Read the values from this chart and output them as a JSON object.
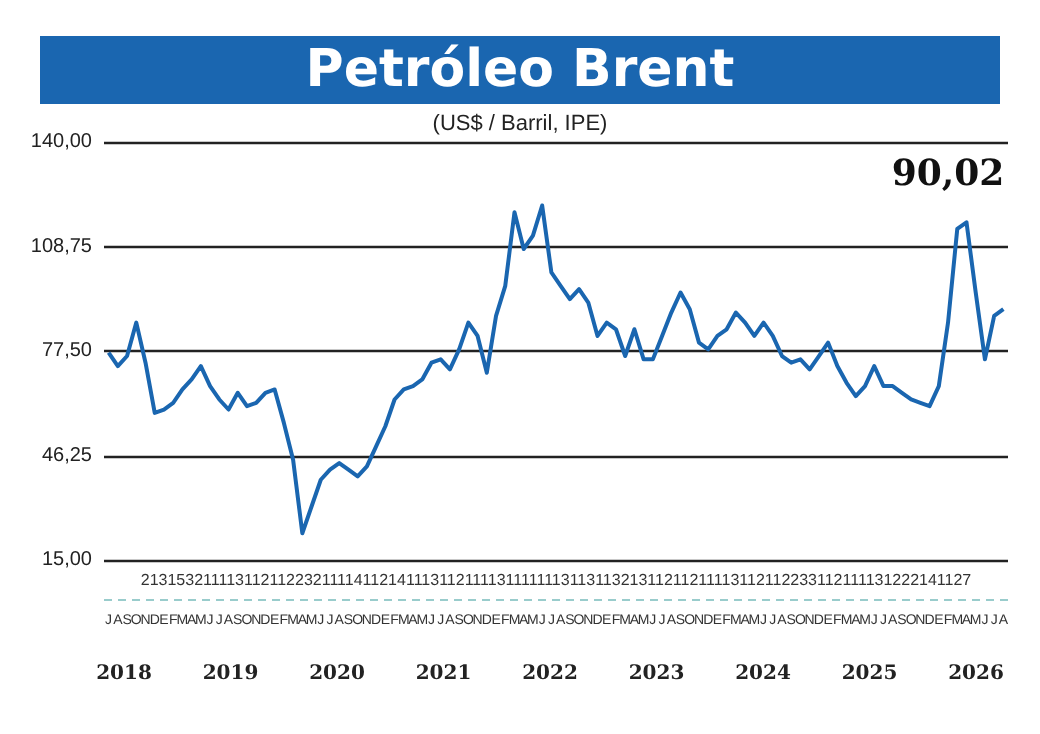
{
  "chart_data": {
    "type": "line",
    "title": "Petróleo Brent",
    "subtitle": "(US$ / Barril, IPE)",
    "categories": [
      "J",
      "A",
      "S",
      "O",
      "N",
      "D",
      "E",
      "F",
      "M",
      "A",
      "M",
      "J",
      "J",
      "A",
      "S",
      "O",
      "N",
      "D",
      "E",
      "F",
      "M",
      "A",
      "M",
      "J",
      "J",
      "A",
      "S",
      "O",
      "N",
      "D",
      "E",
      "F",
      "M",
      "A",
      "M",
      "J",
      "J",
      "A",
      "S",
      "O",
      "N",
      "D",
      "E",
      "F",
      "M",
      "A",
      "M",
      "J",
      "J",
      "A",
      "S",
      "O",
      "N",
      "D",
      "E",
      "F",
      "M",
      "A",
      "M",
      "J",
      "J",
      "A",
      "S",
      "O",
      "N",
      "D",
      "E",
      "F",
      "M",
      "A",
      "M",
      "J",
      "J",
      "A",
      "S",
      "O",
      "N",
      "D",
      "E",
      "F",
      "M",
      "A",
      "M",
      "J",
      "J",
      "A",
      "S",
      "O",
      "N",
      "D",
      "E",
      "F",
      "M",
      "A",
      "M",
      "J",
      "J",
      "A"
    ],
    "series": [
      {
        "color": "#1a66b0",
        "values": [
          77,
          73,
          76,
          86,
          74,
          59,
          60,
          62,
          66,
          69,
          73,
          67,
          63,
          60,
          65,
          61,
          62,
          65,
          66,
          56,
          45,
          23,
          31,
          39,
          42,
          44,
          42,
          40,
          43,
          49,
          55,
          63,
          66,
          67,
          69,
          74,
          75,
          72,
          78,
          86,
          82,
          71,
          88,
          97,
          119,
          108,
          112,
          121,
          101,
          97,
          93,
          96,
          92,
          82,
          86,
          84,
          76,
          84,
          75,
          75,
          82,
          89,
          95,
          90,
          80,
          78,
          82,
          84,
          89,
          86,
          82,
          86,
          82,
          76,
          74,
          75,
          72,
          76,
          80,
          73,
          68,
          64,
          67,
          73,
          67,
          67,
          65,
          63,
          62,
          61,
          67,
          86,
          114,
          116,
          95,
          75,
          88,
          90.02
        ]
      }
    ],
    "ylim": [
      15,
      140
    ],
    "yticks": [
      {
        "value": 15,
        "label": "15,00"
      },
      {
        "value": 46.25,
        "label": "46,25"
      },
      {
        "value": 77.5,
        "label": "77,50"
      },
      {
        "value": 108.75,
        "label": "108,75"
      },
      {
        "value": 140,
        "label": "140,00"
      }
    ],
    "grid": "y",
    "marker": "none",
    "line_style": "solid",
    "annotations": [
      "21315321111311211223211114112141113112111131111111311311321311211211113112112233112111131222141127",
      "2018",
      "2019",
      "2020",
      "2021",
      "2022",
      "2023",
      "2024",
      "2025",
      "2026",
      "90,02"
    ]
  }
}
